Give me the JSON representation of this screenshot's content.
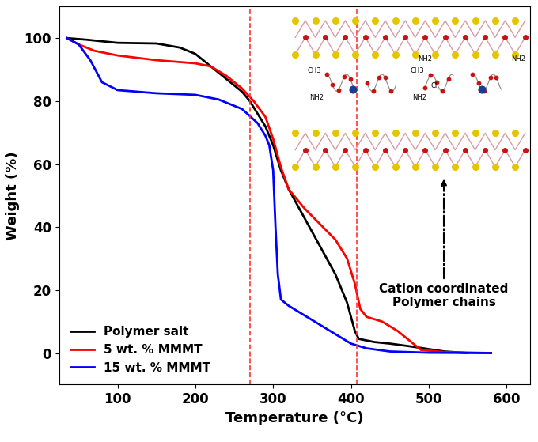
{
  "chart_data": {
    "type": "line",
    "x_label": "Temperature (°C)",
    "y_label": "Weight (%)",
    "xlim": [
      25,
      630
    ],
    "ylim": [
      -10,
      110
    ],
    "xticks": [
      100,
      200,
      300,
      400,
      500,
      600
    ],
    "yticks": [
      0,
      20,
      40,
      60,
      80,
      100
    ],
    "legend": "lower left",
    "grid": false,
    "vlines": [
      270,
      408
    ],
    "vline_color": "#ff3333",
    "annotation": "Cation coordinated\nPolymer chains",
    "inset_labels": [
      "CH3",
      "NH2",
      "CH3",
      "NH2",
      "Cl",
      "NH2",
      "NH2"
    ],
    "series": [
      {
        "name": "Polymer salt",
        "color": "#000000",
        "x": [
          35,
          60,
          100,
          150,
          180,
          200,
          220,
          240,
          260,
          270,
          280,
          290,
          300,
          310,
          320,
          340,
          360,
          380,
          395,
          405,
          410,
          430,
          450,
          480,
          520,
          550
        ],
        "values": [
          100,
          99.5,
          98.5,
          98.3,
          97,
          95,
          91,
          87,
          83,
          80,
          76,
          72,
          66,
          58,
          52,
          43,
          34,
          25,
          16,
          7,
          4.5,
          3.5,
          3,
          2,
          0.5,
          0
        ]
      },
      {
        "name": "5 wt. % MMMT",
        "color": "#ff0000",
        "x": [
          35,
          50,
          70,
          100,
          150,
          200,
          220,
          240,
          260,
          275,
          290,
          300,
          310,
          320,
          340,
          360,
          380,
          395,
          405,
          412,
          420,
          440,
          460,
          480,
          490,
          520,
          580
        ],
        "values": [
          100,
          98,
          96,
          94.5,
          93,
          92,
          91,
          88,
          84,
          80,
          75,
          68,
          59,
          52,
          46,
          41,
          36,
          30,
          22,
          14,
          11.5,
          10,
          7,
          3,
          1,
          0.3,
          0
        ]
      },
      {
        "name": "15 wt. % MMMT",
        "color": "#0000ff",
        "x": [
          35,
          50,
          65,
          80,
          100,
          150,
          200,
          230,
          260,
          280,
          290,
          295,
          300,
          303,
          306,
          310,
          320,
          340,
          360,
          380,
          400,
          420,
          450,
          500,
          580
        ],
        "values": [
          100,
          98,
          93,
          86,
          83.5,
          82.5,
          82,
          80.5,
          77.5,
          73,
          69,
          66,
          58,
          40,
          25,
          17,
          15,
          12,
          9,
          6,
          3,
          1.5,
          0.5,
          0.1,
          0
        ]
      }
    ]
  }
}
